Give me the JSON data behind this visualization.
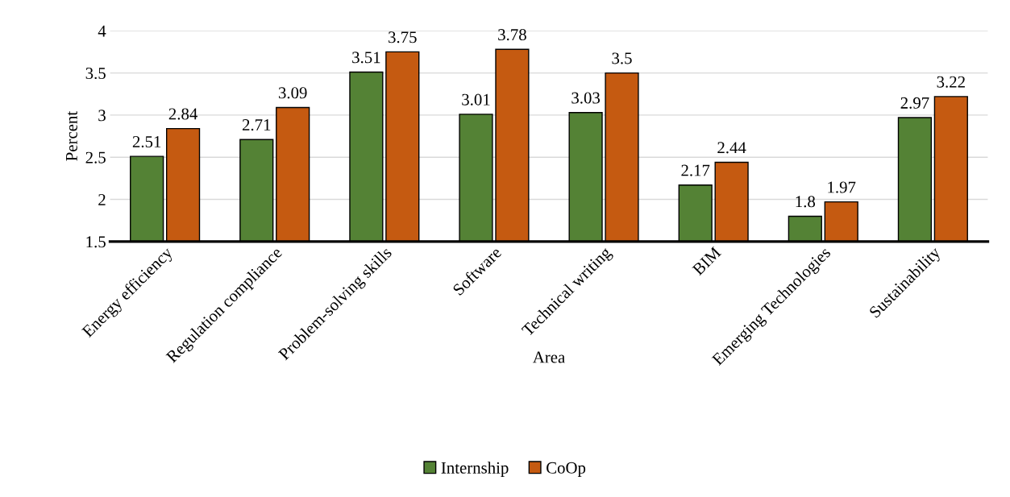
{
  "chart_data": {
    "type": "bar",
    "xlabel": "Area",
    "ylabel": "Percent",
    "categories": [
      "Energy efficiency",
      "Regulation compliance",
      "Problem-solving skills",
      "Software",
      "Technical writing",
      "BIM",
      "Emerging Technologies",
      "Sustainability"
    ],
    "series": [
      {
        "name": "Internship",
        "color": "#548235",
        "values": [
          2.51,
          2.71,
          3.51,
          3.01,
          3.03,
          2.17,
          1.8,
          2.97
        ]
      },
      {
        "name": "CoOp",
        "color": "#c55a11",
        "values": [
          2.84,
          3.09,
          3.75,
          3.78,
          3.5,
          2.44,
          1.97,
          3.22
        ]
      }
    ],
    "ylim": [
      1.5,
      4
    ],
    "yticks": [
      1.5,
      2,
      2.5,
      3,
      3.5,
      4
    ],
    "grid": "y",
    "legend": "bottom",
    "data_labels": true
  }
}
